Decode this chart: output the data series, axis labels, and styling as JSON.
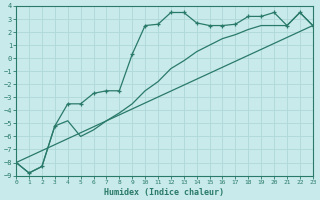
{
  "xlabel": "Humidex (Indice chaleur)",
  "bg_color": "#c8eaea",
  "grid_color": "#b0d8d8",
  "line_color": "#2a7a6a",
  "x_min": 0,
  "x_max": 23,
  "y_min": -9,
  "y_max": 4,
  "line1_x": [
    0,
    1,
    2,
    3,
    4,
    5,
    6,
    7,
    8,
    9,
    10,
    11,
    12,
    13,
    14,
    15,
    16,
    17,
    18,
    19,
    20,
    21,
    22,
    23
  ],
  "line1_y": [
    -8.0,
    -8.8,
    -8.3,
    -5.2,
    -3.5,
    -3.5,
    -2.7,
    -2.5,
    -2.5,
    0.3,
    2.5,
    2.6,
    3.5,
    3.5,
    2.7,
    2.5,
    2.5,
    2.6,
    3.2,
    3.2,
    3.5,
    2.5,
    3.5,
    2.5
  ],
  "line2_x": [
    0,
    1,
    2,
    3,
    4,
    5,
    6,
    7,
    8,
    9,
    10,
    11,
    12,
    13,
    14,
    15,
    16,
    17,
    18,
    19,
    20,
    21,
    22,
    23
  ],
  "line2_y": [
    -8.0,
    -8.8,
    -8.3,
    -5.2,
    -4.8,
    -6.0,
    -5.5,
    -4.8,
    -4.2,
    -3.5,
    -2.5,
    -1.8,
    -0.8,
    -0.2,
    0.5,
    1.0,
    1.5,
    1.8,
    2.2,
    2.5,
    2.5,
    2.5,
    3.5,
    2.5
  ],
  "line3_x": [
    0,
    23
  ],
  "line3_y": [
    -8.0,
    2.5
  ],
  "x_ticks": [
    0,
    1,
    2,
    3,
    4,
    5,
    6,
    7,
    8,
    9,
    10,
    11,
    12,
    13,
    14,
    15,
    16,
    17,
    18,
    19,
    20,
    21,
    22,
    23
  ],
  "y_ticks": [
    -9,
    -8,
    -7,
    -6,
    -5,
    -4,
    -3,
    -2,
    -1,
    0,
    1,
    2,
    3,
    4
  ],
  "tick_fontsize": 5,
  "xlabel_fontsize": 6
}
